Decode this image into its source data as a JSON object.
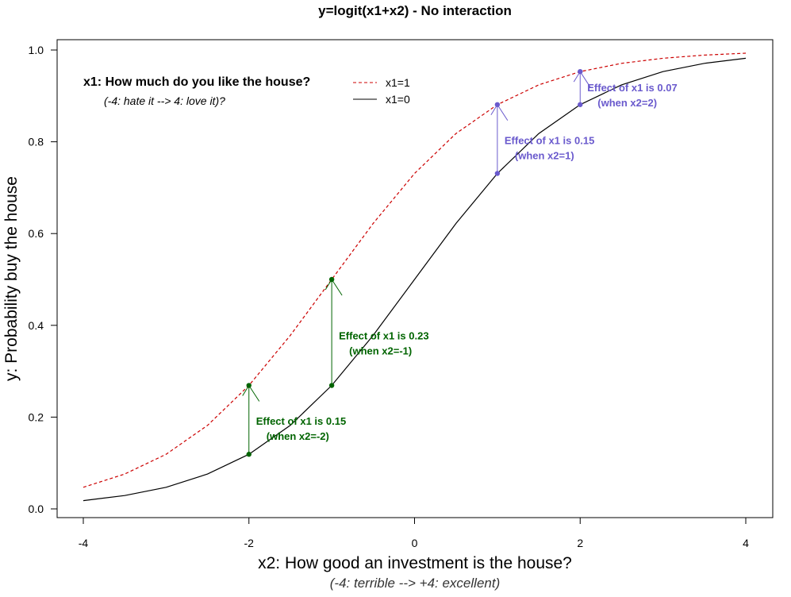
{
  "chart_data": {
    "type": "line",
    "title": "y=logit(x1+x2)  - No interaction",
    "xlabel": "x2: How good an investment is the house?",
    "xlabel_sub": "(-4: terrible --> +4: excellent)",
    "ylabel": "y: Probability buy the house",
    "xlim": [
      -4,
      4
    ],
    "ylim": [
      0,
      1
    ],
    "x_ticks": [
      -4,
      -2,
      0,
      2,
      4
    ],
    "y_ticks": [
      0.0,
      0.2,
      0.4,
      0.6,
      0.8,
      1.0
    ],
    "x_tick_labels": [
      "-4",
      "-2",
      "0",
      "2",
      "4"
    ],
    "y_tick_labels": [
      "0.0",
      "0.2",
      "0.4",
      "0.6",
      "0.8",
      "1.0"
    ],
    "grid": false,
    "legend": {
      "position": "top-left",
      "title": "x1: How much do you like the house?",
      "subtitle": "(-4: hate it --> 4: love it)?",
      "entries": [
        "x1=1",
        "x1=0"
      ]
    },
    "series": [
      {
        "name": "x1=1",
        "color": "#cc0000",
        "dash": "dashed",
        "x": [
          -4,
          -3.5,
          -3,
          -2.5,
          -2,
          -1.5,
          -1,
          -0.5,
          0,
          0.5,
          1,
          1.5,
          2,
          2.5,
          3,
          3.5,
          4
        ],
        "values": [
          0.047,
          0.076,
          0.119,
          0.182,
          0.269,
          0.378,
          0.5,
          0.622,
          0.731,
          0.818,
          0.881,
          0.924,
          0.953,
          0.971,
          0.982,
          0.989,
          0.993
        ]
      },
      {
        "name": "x1=0",
        "color": "#000000",
        "dash": "solid",
        "x": [
          -4,
          -3.5,
          -3,
          -2.5,
          -2,
          -1.5,
          -1,
          -0.5,
          0,
          0.5,
          1,
          1.5,
          2,
          2.5,
          3,
          3.5,
          4
        ],
        "values": [
          0.018,
          0.029,
          0.047,
          0.076,
          0.119,
          0.182,
          0.269,
          0.378,
          0.5,
          0.622,
          0.731,
          0.818,
          0.881,
          0.924,
          0.953,
          0.971,
          0.982
        ]
      }
    ],
    "annotations": [
      {
        "x2": -2,
        "y_low": 0.119,
        "y_high": 0.269,
        "line1": "Effect of x1 is 0.15",
        "line2": "(when x2=-2)",
        "color": "#006400"
      },
      {
        "x2": -1,
        "y_low": 0.269,
        "y_high": 0.5,
        "line1": "Effect of x1 is 0.23",
        "line2": "(when x2=-1)",
        "color": "#006400"
      },
      {
        "x2": 1,
        "y_low": 0.731,
        "y_high": 0.881,
        "line1": "Effect of x1 is 0.15",
        "line2": "(when x2=1)",
        "color": "#6a5acd"
      },
      {
        "x2": 2,
        "y_low": 0.881,
        "y_high": 0.953,
        "line1": "Effect of x1 is 0.07",
        "line2": "(when x2=2)",
        "color": "#6a5acd"
      }
    ]
  }
}
